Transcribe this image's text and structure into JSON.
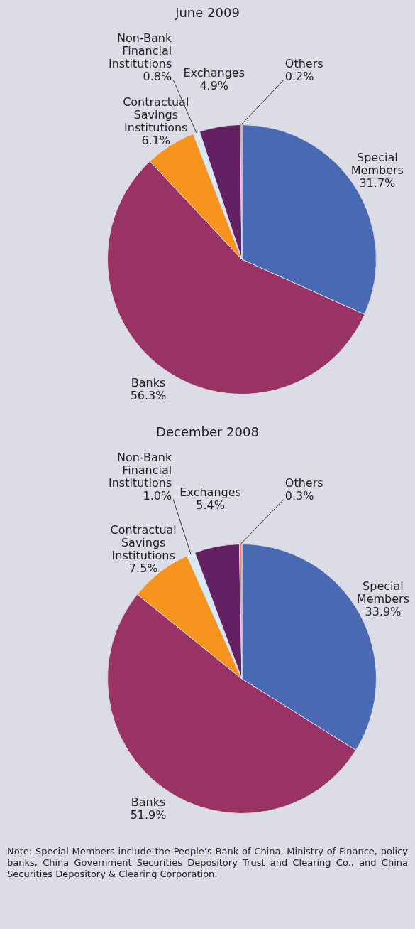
{
  "chart_data": [
    {
      "type": "pie",
      "title": "June 2009",
      "categories": [
        "Special Members",
        "Banks",
        "Contractual Savings Institutions",
        "Non-Bank Financial Institutions",
        "Exchanges",
        "Others"
      ],
      "values": [
        31.7,
        56.3,
        6.1,
        0.8,
        4.9,
        0.2
      ],
      "value_labels": [
        "31.7%",
        "56.3%",
        "6.1%",
        "0.8%",
        "4.9%",
        "0.2%"
      ],
      "colors": [
        "#4a69b3",
        "#993366",
        "#f7941d",
        "#d5eaf2",
        "#632163",
        "#f08080"
      ],
      "legend": false
    },
    {
      "type": "pie",
      "title": "December 2008",
      "categories": [
        "Special Members",
        "Banks",
        "Contractual Savings Institutions",
        "Non-Bank Financial Institutions",
        "Exchanges",
        "Others"
      ],
      "values": [
        33.9,
        51.9,
        7.5,
        1.0,
        5.4,
        0.3
      ],
      "value_labels": [
        "33.9%",
        "51.9%",
        "7.5%",
        "1.0%",
        "5.4%",
        "0.3%"
      ],
      "colors": [
        "#4a69b3",
        "#993366",
        "#f7941d",
        "#d5eaf2",
        "#632163",
        "#f08080"
      ],
      "legend": false,
      "annotations": [
        "Note: Special Members include the People’s Bank of China, Ministry of Finance, policy banks, China Government Securities Depository Trust and Clearing Co., and China Securities Depository & Clearing Corporation."
      ]
    }
  ]
}
